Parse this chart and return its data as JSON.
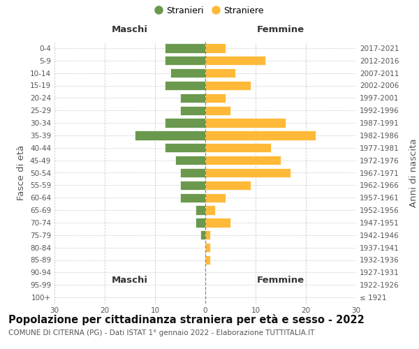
{
  "age_groups": [
    "100+",
    "95-99",
    "90-94",
    "85-89",
    "80-84",
    "75-79",
    "70-74",
    "65-69",
    "60-64",
    "55-59",
    "50-54",
    "45-49",
    "40-44",
    "35-39",
    "30-34",
    "25-29",
    "20-24",
    "15-19",
    "10-14",
    "5-9",
    "0-4"
  ],
  "birth_years": [
    "≤ 1921",
    "1922-1926",
    "1927-1931",
    "1932-1936",
    "1937-1941",
    "1942-1946",
    "1947-1951",
    "1952-1956",
    "1957-1961",
    "1962-1966",
    "1967-1971",
    "1972-1976",
    "1977-1981",
    "1982-1986",
    "1987-1991",
    "1992-1996",
    "1997-2001",
    "2002-2006",
    "2007-2011",
    "2012-2016",
    "2017-2021"
  ],
  "maschi": [
    0,
    0,
    0,
    0,
    0,
    1,
    2,
    2,
    5,
    5,
    5,
    6,
    8,
    14,
    8,
    5,
    5,
    8,
    7,
    8,
    8
  ],
  "femmine": [
    0,
    0,
    0,
    1,
    1,
    1,
    5,
    2,
    4,
    9,
    17,
    15,
    13,
    22,
    16,
    5,
    4,
    9,
    6,
    12,
    4
  ],
  "maschi_color": "#6a994e",
  "femmine_color": "#ffb938",
  "background_color": "#ffffff",
  "grid_color": "#cccccc",
  "title": "Popolazione per cittadinanza straniera per età e sesso - 2022",
  "subtitle": "COMUNE DI CITERNA (PG) - Dati ISTAT 1° gennaio 2022 - Elaborazione TUTTITALIA.IT",
  "xlabel_left": "Maschi",
  "xlabel_right": "Femmine",
  "ylabel_left": "Fasce di età",
  "ylabel_right": "Anni di nascita",
  "legend_maschi": "Stranieri",
  "legend_femmine": "Straniere",
  "xlim": 30,
  "title_fontsize": 10.5,
  "subtitle_fontsize": 7.5,
  "tick_fontsize": 7.5,
  "label_fontsize": 9.5
}
